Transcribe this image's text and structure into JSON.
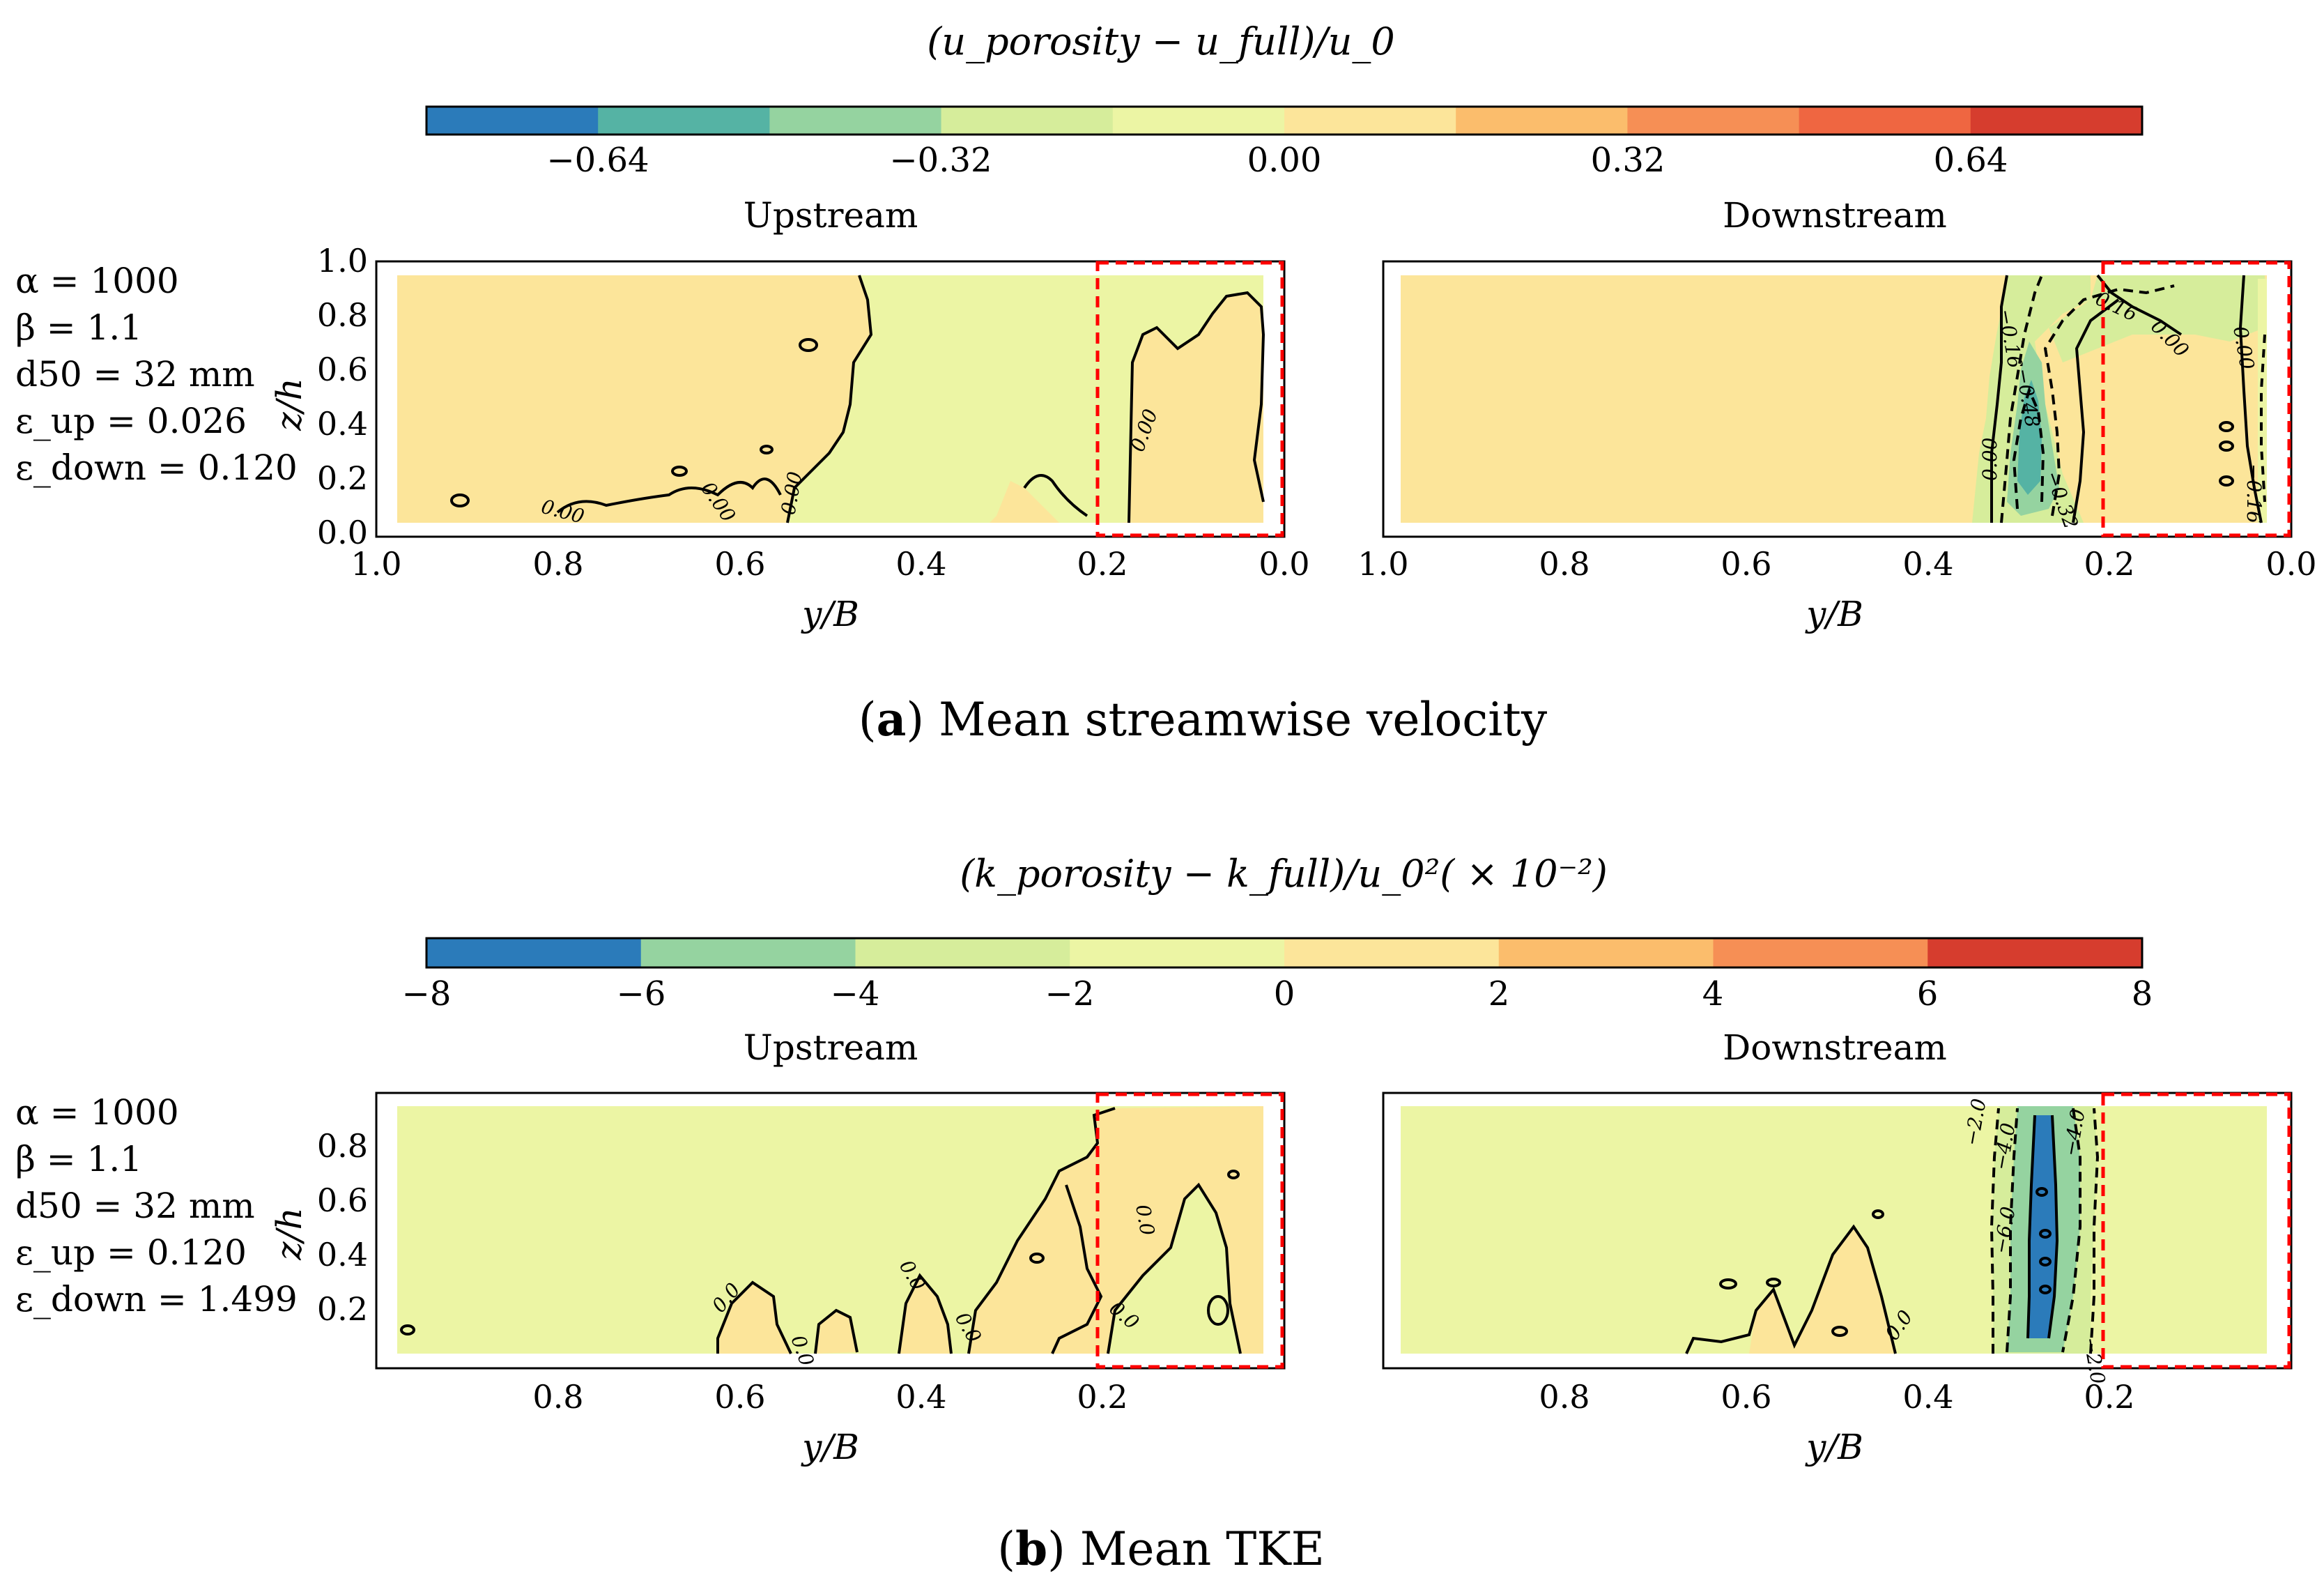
{
  "colors": {
    "levels": [
      "#2b7bba",
      "#55b3a4",
      "#95d3a0",
      "#d6ed9b",
      "#ecf5a4",
      "#fce59a",
      "#fbbd6c",
      "#f68f55",
      "#ef6641",
      "#d63d2e"
    ],
    "levels_b": [
      "#2b7bba",
      "#95d3a0",
      "#d6ed9b",
      "#ecf5a4",
      "#fce59a",
      "#fbbd6c",
      "#f68f55",
      "#d63d2e"
    ],
    "dashed_box": "#ff0000",
    "contour": "#000000"
  },
  "panel_a": {
    "colorbar_title": "(u_porosity − u_full)/u_0",
    "colorbar_ticks": [
      "−0.64",
      "−0.32",
      "0.00",
      "0.32",
      "0.64"
    ],
    "left_title": "Upstream",
    "right_title": "Downstream",
    "params": [
      "α = 1000",
      "β = 1.1",
      "d50 = 32 mm",
      "ε_up = 0.026",
      "ε_down = 0.120"
    ],
    "y_label": "z/h",
    "x_label": "y/B",
    "y_ticks": [
      "1.0",
      "0.8",
      "0.6",
      "0.4",
      "0.2",
      "0.0"
    ],
    "x_ticks": [
      "1.0",
      "0.8",
      "0.6",
      "0.4",
      "0.2",
      "0.0"
    ],
    "contour_labels_left": [
      "0.00",
      "0.00",
      "0.00",
      "0.00"
    ],
    "contour_labels_right": [
      "0.16",
      "0.00",
      "0.00",
      "−0.16",
      "−0.48",
      "0.00",
      "−0.32",
      "−0.16"
    ],
    "caption_letter": "a",
    "caption_text": " Mean streamwise velocity"
  },
  "panel_b": {
    "colorbar_title": "(k_porosity − k_full)/u_0²( × 10⁻²)",
    "colorbar_ticks": [
      "−8",
      "−6",
      "−4",
      "−2",
      "0",
      "2",
      "4",
      "6",
      "8"
    ],
    "left_title": "Upstream",
    "right_title": "Downstream",
    "params": [
      "α = 1000",
      "β = 1.1",
      "d50 = 32 mm",
      "ε_up = 0.120",
      "ε_down = 1.499"
    ],
    "y_label": "z/h",
    "x_label": "y/B",
    "y_ticks": [
      "0.8",
      "0.6",
      "0.4",
      "0.2"
    ],
    "x_ticks": [
      "0.8",
      "0.6",
      "0.4",
      "0.2"
    ],
    "contour_labels_left": [
      "0.0",
      "0.0",
      "0.0",
      "0.0",
      "0.0",
      "0.0"
    ],
    "contour_labels_right": [
      "−2.0",
      "−4.0",
      "−4.0",
      "−6.0",
      "0.0",
      "−2.0"
    ],
    "caption_letter": "b",
    "caption_text": " Mean TKE"
  },
  "chart_data": [
    {
      "type": "heatmap",
      "title": "(u_porosity − u_full)/u_0 — Upstream",
      "xlabel": "y/B",
      "ylabel": "z/h",
      "xlim": [
        1.0,
        0.0
      ],
      "ylim": [
        0.0,
        1.0
      ],
      "levels": [
        -0.8,
        -0.64,
        -0.48,
        -0.32,
        -0.16,
        0.0,
        0.16,
        0.32,
        0.48,
        0.64,
        0.8
      ],
      "regions": [
        {
          "y_range": [
            0.97,
            0.5
          ],
          "value_band": [
            0.0,
            0.16
          ]
        },
        {
          "y_range": [
            0.5,
            0.16
          ],
          "value_band": [
            -0.16,
            0.0
          ]
        },
        {
          "y_range": [
            0.16,
            0.02
          ],
          "value_band": [
            0.0,
            0.16
          ]
        }
      ],
      "porous_zone_y": [
        0.2,
        0.0
      ]
    },
    {
      "type": "heatmap",
      "title": "(u_porosity − u_full)/u_0 — Downstream",
      "xlabel": "y/B",
      "ylabel": "z/h",
      "xlim": [
        1.0,
        0.0
      ],
      "ylim": [
        0.0,
        1.0
      ],
      "levels": [
        -0.8,
        -0.64,
        -0.48,
        -0.32,
        -0.16,
        0.0,
        0.16,
        0.32,
        0.48,
        0.64,
        0.8
      ],
      "regions": [
        {
          "y_range": [
            0.97,
            0.34
          ],
          "value_band": [
            0.0,
            0.16
          ]
        },
        {
          "y_range": [
            0.33,
            0.24
          ],
          "value_band": [
            -0.64,
            -0.16
          ],
          "min_value": -0.48
        },
        {
          "y_range": [
            0.2,
            0.0
          ],
          "value_band": [
            0.0,
            0.16
          ]
        }
      ],
      "porous_zone_y": [
        0.2,
        0.0
      ]
    },
    {
      "type": "heatmap",
      "title": "(k_porosity − k_full)/u_0² (×10⁻²) — Upstream",
      "xlabel": "y/B",
      "ylabel": "z/h",
      "xlim": [
        1.0,
        0.0
      ],
      "ylim": [
        0.0,
        1.0
      ],
      "levels": [
        -8,
        -6,
        -4,
        -2,
        0,
        2,
        4,
        6,
        8
      ],
      "regions": [
        {
          "y_range": [
            0.97,
            0.35
          ],
          "value_band": [
            -2,
            0
          ]
        },
        {
          "y_range": [
            0.35,
            0.02
          ],
          "value_band": [
            0,
            2
          ]
        }
      ],
      "porous_zone_y": [
        0.2,
        0.0
      ]
    },
    {
      "type": "heatmap",
      "title": "(k_porosity − k_full)/u_0² (×10⁻²) — Downstream",
      "xlabel": "y/B",
      "ylabel": "z/h",
      "xlim": [
        1.0,
        0.0
      ],
      "ylim": [
        0.0,
        1.0
      ],
      "levels": [
        -8,
        -6,
        -4,
        -2,
        0,
        2,
        4,
        6,
        8
      ],
      "regions": [
        {
          "y_range": [
            0.97,
            0.02
          ],
          "value_band": [
            -2,
            0
          ]
        },
        {
          "y_range": [
            0.5,
            0.43
          ],
          "value_band": [
            0,
            2
          ]
        },
        {
          "y_range": [
            0.33,
            0.24
          ],
          "value_band": [
            -8,
            -2
          ],
          "min_value": -6.0
        }
      ],
      "porous_zone_y": [
        0.2,
        0.0
      ]
    }
  ]
}
